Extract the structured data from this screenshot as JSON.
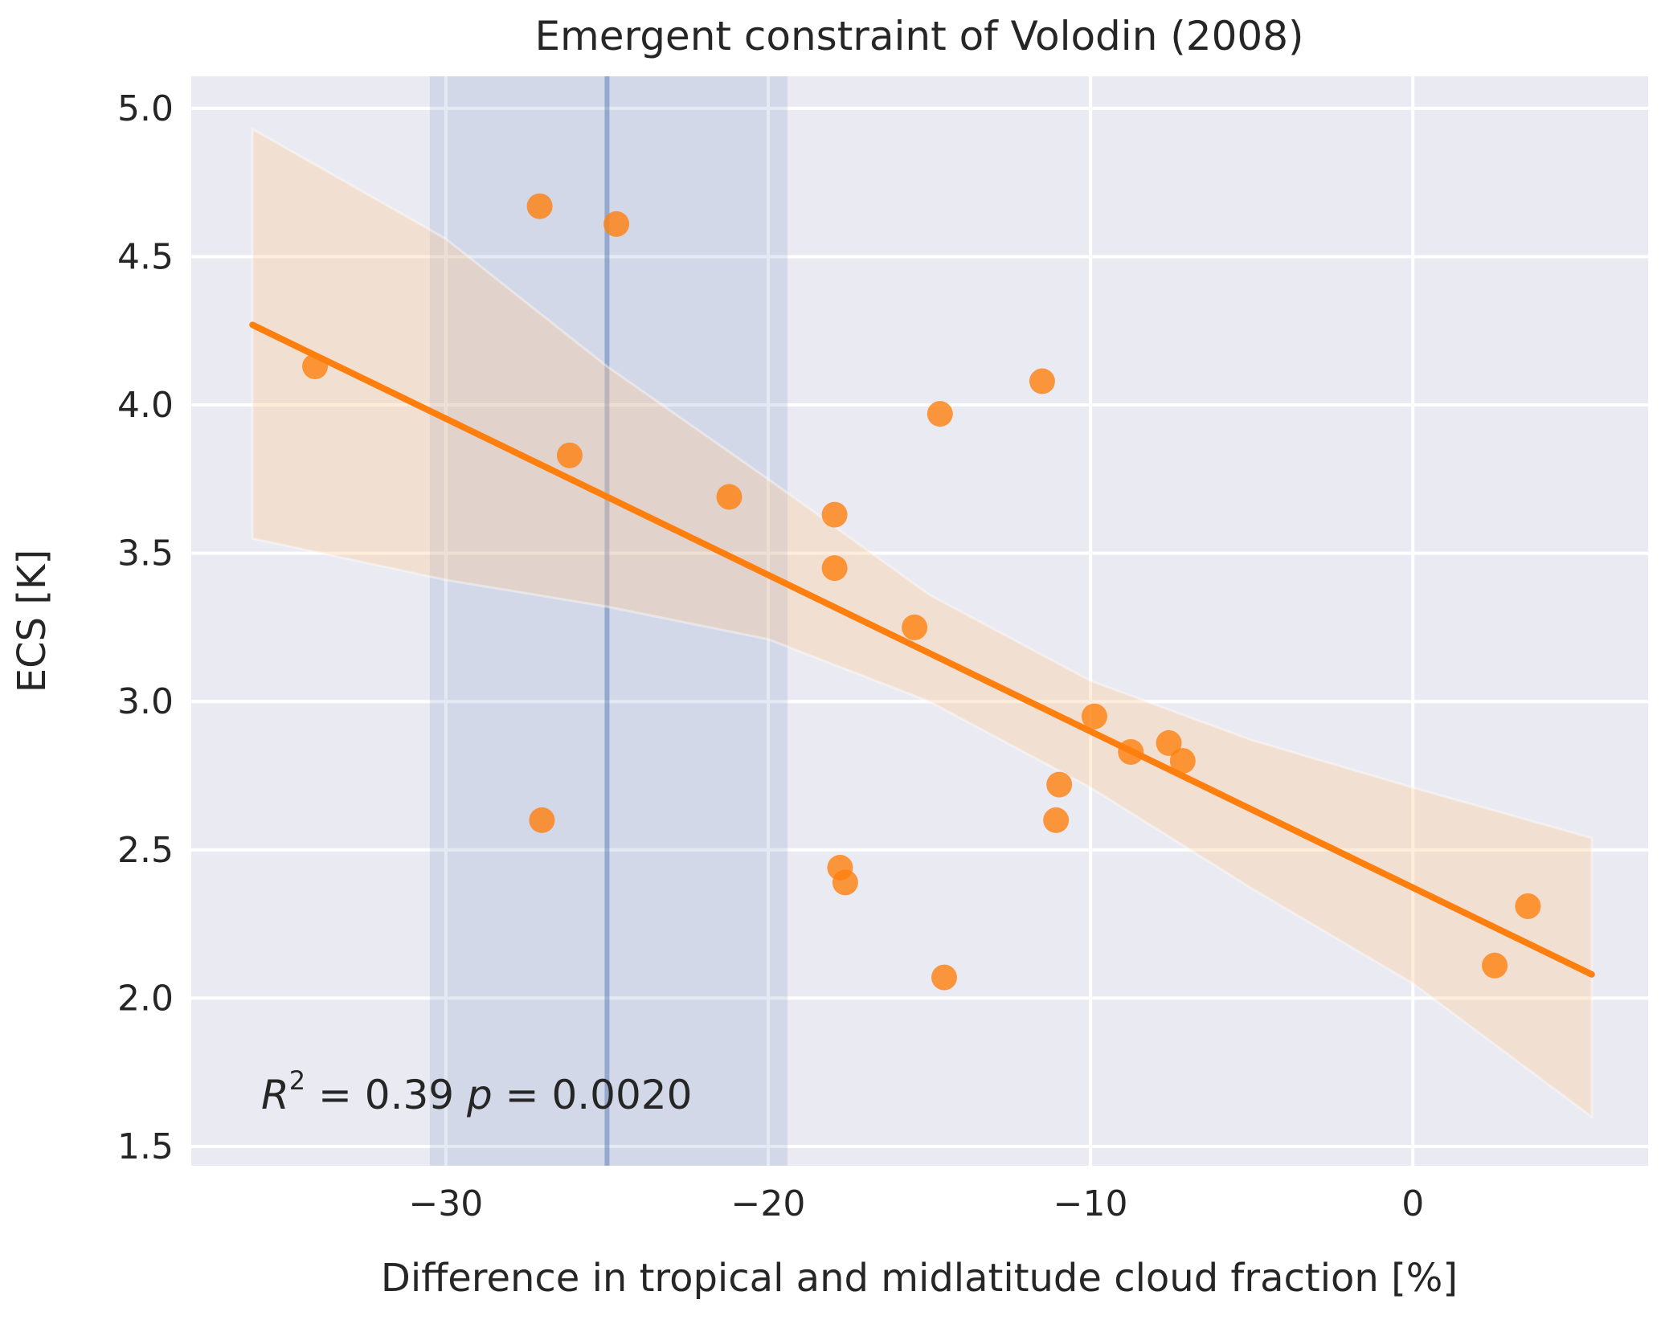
{
  "chart_data": {
    "type": "scatter",
    "title": "Emergent constraint of Volodin (2008)",
    "xlabel": "Difference in tropical and midlatitude cloud fraction [%]",
    "ylabel": "ECS [K]",
    "xlim": [
      -37.9,
      7.3
    ],
    "ylim": [
      1.435,
      5.108
    ],
    "grid": true,
    "xticks": [
      -30,
      -20,
      -10,
      0
    ],
    "xtick_labels": [
      "−30",
      "−20",
      "−10",
      "0"
    ],
    "yticks": [
      1.5,
      2.0,
      2.5,
      3.0,
      3.5,
      4.0,
      4.5,
      5.0
    ],
    "ytick_labels": [
      "1.5",
      "2.0",
      "2.5",
      "3.0",
      "3.5",
      "4.0",
      "4.5",
      "5.0"
    ],
    "points": {
      "x": [
        -34.06,
        -27.09,
        -24.71,
        -26.16,
        -21.21,
        -17.94,
        -17.94,
        -15.46,
        -14.67,
        -11.5,
        -9.88,
        -8.75,
        -7.57,
        -7.14,
        -10.97,
        -11.07,
        -27.02,
        -17.77,
        -17.61,
        -14.54,
        2.54,
        3.57
      ],
      "y": [
        4.13,
        4.67,
        4.61,
        3.83,
        3.69,
        3.63,
        3.45,
        3.25,
        3.97,
        4.08,
        2.95,
        2.83,
        2.86,
        2.8,
        2.72,
        2.6,
        2.6,
        2.44,
        2.39,
        2.07,
        2.11,
        2.31
      ]
    },
    "regression": {
      "x": [
        -36.0,
        5.55
      ],
      "y": [
        4.27,
        2.08
      ]
    },
    "confidence_band": {
      "x": [
        -36,
        -30,
        -25,
        -20,
        -15,
        -10,
        -5,
        0,
        5.55
      ],
      "upper": [
        4.93,
        4.56,
        4.13,
        3.75,
        3.36,
        3.07,
        2.87,
        2.71,
        2.54
      ],
      "lower": [
        3.55,
        3.41,
        3.32,
        3.21,
        3.0,
        2.71,
        2.37,
        2.05,
        1.6
      ]
    },
    "observation": {
      "value": -25.0,
      "range": [
        -30.5,
        -19.4
      ]
    },
    "annotation": {
      "r2_label": "R",
      "r2_sup": "2",
      "text": " = 0.39 ",
      "p_label": "p",
      "p_text": " = 0.0020"
    },
    "colors": {
      "points": "#ff7f0e",
      "line": "#ff7f0e",
      "band": "#ffcc99",
      "obs": "#4c72b0",
      "axes_bg": "#eaeaf2",
      "grid": "#ffffff"
    }
  }
}
